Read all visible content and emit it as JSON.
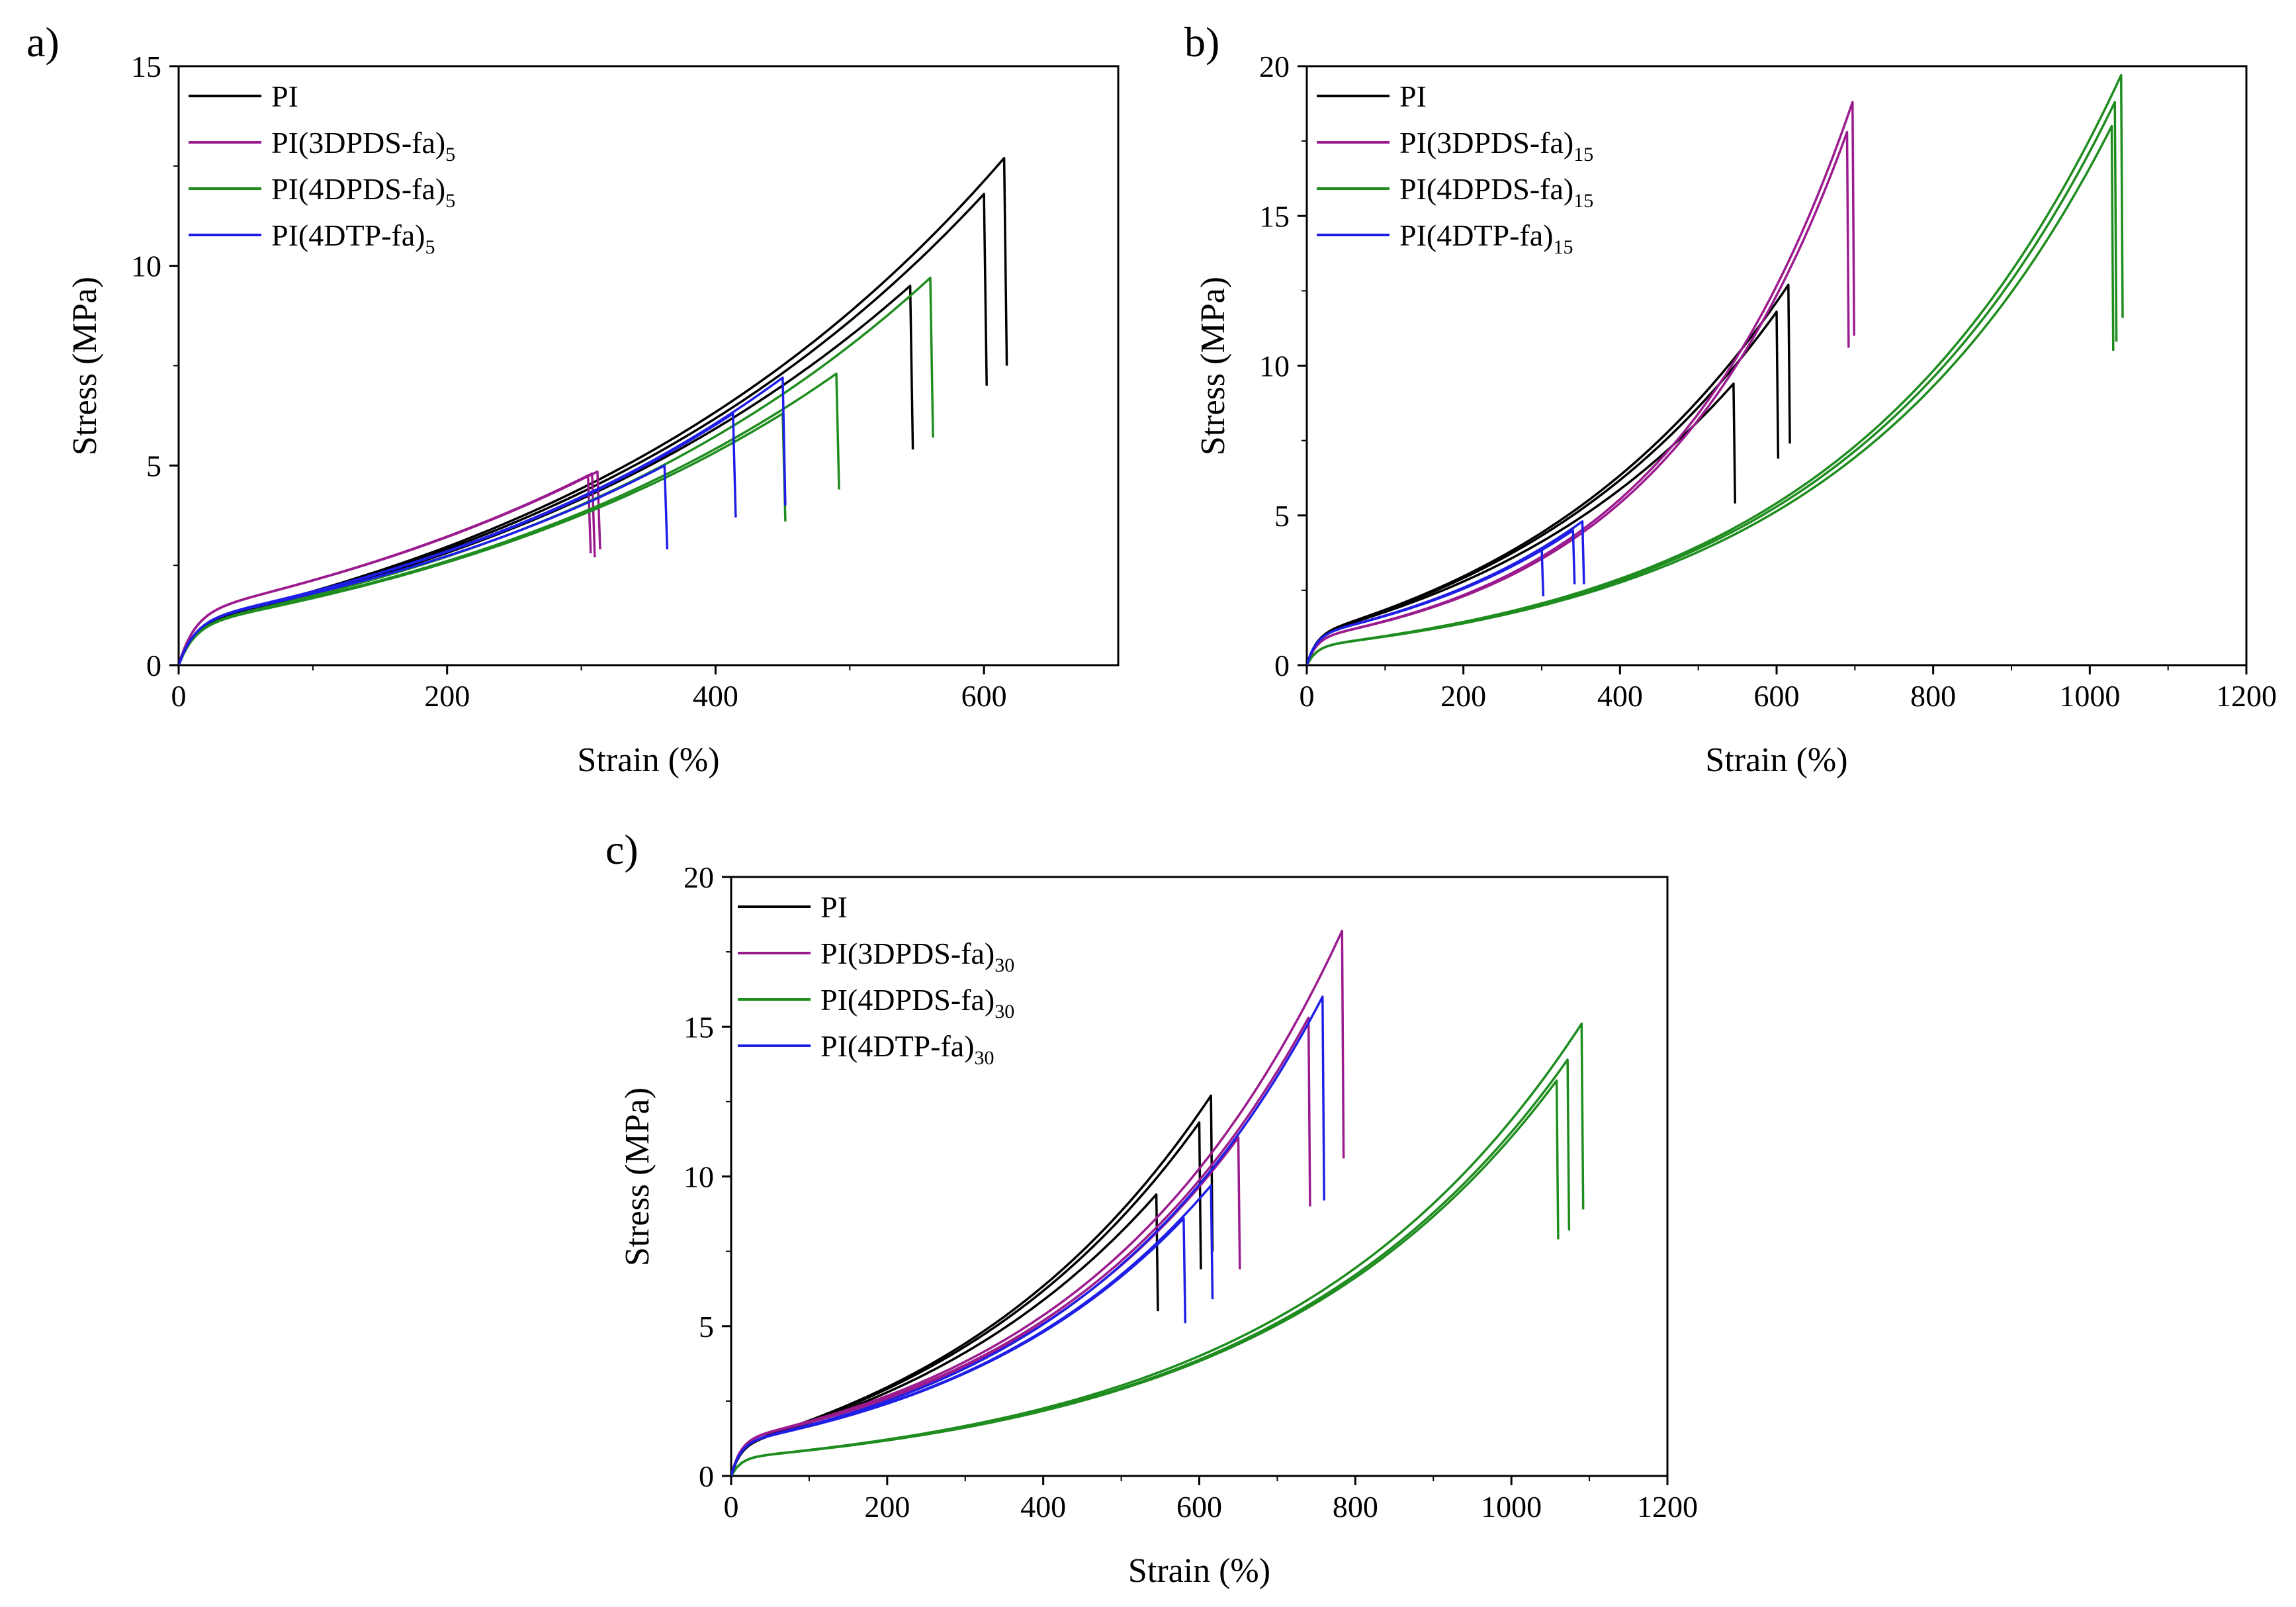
{
  "figure_title": "",
  "colors": {
    "PI": "#000000",
    "3DPDS": "#9b1b8e",
    "4DPDS": "#1e8c1e",
    "4DTP": "#1e1ee6"
  },
  "chart_data": [
    {
      "panel": "a)",
      "type": "line",
      "xlabel": "Strain (%)",
      "ylabel": "Stress (MPa)",
      "xlim": [
        0,
        700
      ],
      "ylim": [
        0,
        15
      ],
      "xticks": [
        "0",
        "200",
        "400",
        "600"
      ],
      "yticks": [
        "0",
        "5",
        "10",
        "15"
      ],
      "legend_position": "top-left",
      "legend": [
        {
          "base": "PI",
          "sub": "",
          "color_key": "PI"
        },
        {
          "base": "PI(3DPDS-fa)",
          "sub": "5",
          "color_key": "3DPDS"
        },
        {
          "base": "PI(4DPDS-fa)",
          "sub": "5",
          "color_key": "4DPDS"
        },
        {
          "base": "PI(4DTP-fa)",
          "sub": "5",
          "color_key": "4DTP"
        }
      ],
      "series": [
        {
          "name": "PI",
          "color_key": "PI",
          "k": 0.0027,
          "a": 1.0,
          "b": 15,
          "breaks": [
            [
              545,
              9.5,
              5.4
            ],
            [
              600,
              11.8,
              7.0
            ],
            [
              615,
              12.7,
              7.5
            ]
          ]
        },
        {
          "name": "PI(3DPDS-fa)5",
          "color_key": "3DPDS",
          "k": 0.0028,
          "a": 1.3,
          "b": 15,
          "breaks": [
            [
              305,
              4.75,
              2.8
            ],
            [
              308,
              4.8,
              2.7
            ],
            [
              312,
              4.85,
              2.9
            ]
          ]
        },
        {
          "name": "PI(4DPDS-fa)5",
          "color_key": "4DPDS",
          "k": 0.0028,
          "a": 1.0,
          "b": 15,
          "breaks": [
            [
              450,
              6.3,
              3.6
            ],
            [
              490,
              7.3,
              4.4
            ],
            [
              560,
              9.7,
              5.7
            ]
          ]
        },
        {
          "name": "PI(4DTP-fa)5",
          "color_key": "4DTP",
          "k": 0.003,
          "a": 1.1,
          "b": 15,
          "breaks": [
            [
              362,
              5.0,
              2.9
            ],
            [
              413,
              6.3,
              3.7
            ],
            [
              450,
              7.2,
              4.0
            ]
          ]
        }
      ]
    },
    {
      "panel": "b)",
      "type": "line",
      "xlabel": "Strain (%)",
      "ylabel": "Stress (MPa)",
      "xlim": [
        0,
        1200
      ],
      "ylim": [
        0,
        20
      ],
      "xticks": [
        "0",
        "200",
        "400",
        "600",
        "800",
        "1000",
        "1200"
      ],
      "yticks": [
        "0",
        "5",
        "10",
        "15",
        "20"
      ],
      "legend_position": "top-left",
      "legend": [
        {
          "base": "PI",
          "sub": "",
          "color_key": "PI"
        },
        {
          "base": "PI(3DPDS-fa)",
          "sub": "15",
          "color_key": "3DPDS"
        },
        {
          "base": "PI(4DPDS-fa)",
          "sub": "15",
          "color_key": "4DPDS"
        },
        {
          "base": "PI(4DTP-fa)",
          "sub": "15",
          "color_key": "4DTP"
        }
      ],
      "series": [
        {
          "name": "PI",
          "color_key": "PI",
          "k": 0.0027,
          "a": 1.0,
          "b": 15,
          "breaks": [
            [
              545,
              9.4,
              5.4
            ],
            [
              600,
              11.8,
              6.9
            ],
            [
              615,
              12.7,
              7.4
            ]
          ]
        },
        {
          "name": "PI(3DPDS-fa)15",
          "color_key": "3DPDS",
          "k": 0.004,
          "a": 0.9,
          "b": 15,
          "breaks": [
            [
              690,
              17.8,
              10.6
            ],
            [
              697,
              18.8,
              11.0
            ]
          ]
        },
        {
          "name": "PI(4DPDS-fa)15",
          "color_key": "4DPDS",
          "k": 0.0028,
          "a": 0.62,
          "b": 15,
          "breaks": [
            [
              1028,
              18.0,
              10.5
            ],
            [
              1032,
              18.8,
              10.8
            ],
            [
              1040,
              19.7,
              11.6
            ]
          ]
        },
        {
          "name": "PI(4DTP-fa)15",
          "color_key": "4DTP",
          "k": 0.0035,
          "a": 1.0,
          "b": 15,
          "breaks": [
            [
              300,
              3.9,
              2.3
            ],
            [
              340,
              4.5,
              2.7
            ],
            [
              352,
              4.8,
              2.7
            ]
          ]
        }
      ]
    },
    {
      "panel": "c)",
      "type": "line",
      "xlabel": "Strain (%)",
      "ylabel": "Stress (MPa)",
      "xlim": [
        0,
        1200
      ],
      "ylim": [
        0,
        20
      ],
      "xticks": [
        "0",
        "200",
        "400",
        "600",
        "800",
        "1000",
        "1200"
      ],
      "yticks": [
        "0",
        "5",
        "10",
        "15",
        "20"
      ],
      "legend_position": "top-left",
      "legend": [
        {
          "base": "PI",
          "sub": "",
          "color_key": "PI"
        },
        {
          "base": "PI(3DPDS-fa)",
          "sub": "30",
          "color_key": "3DPDS"
        },
        {
          "base": "PI(4DPDS-fa)",
          "sub": "30",
          "color_key": "4DPDS"
        },
        {
          "base": "PI(4DTP-fa)",
          "sub": "30",
          "color_key": "4DTP"
        }
      ],
      "series": [
        {
          "name": "PI",
          "color_key": "PI",
          "k": 0.0027,
          "a": 1.0,
          "b": 15,
          "breaks": [
            [
              545,
              9.4,
              5.5
            ],
            [
              600,
              11.8,
              6.9
            ],
            [
              615,
              12.7,
              7.5
            ]
          ]
        },
        {
          "name": "PI(3DPDS-fa)30",
          "color_key": "3DPDS",
          "k": 0.003,
          "a": 1.2,
          "b": 15,
          "breaks": [
            [
              650,
              11.3,
              6.9
            ],
            [
              740,
              15.3,
              9.0
            ],
            [
              783,
              18.2,
              10.6
            ]
          ]
        },
        {
          "name": "PI(4DPDS-fa)30",
          "color_key": "4DPDS",
          "k": 0.0026,
          "a": 0.6,
          "b": 15,
          "breaks": [
            [
              1058,
              13.2,
              7.9
            ],
            [
              1072,
              13.9,
              8.2
            ],
            [
              1090,
              15.1,
              8.9
            ]
          ]
        },
        {
          "name": "PI(4DTP-fa)30",
          "color_key": "4DTP",
          "k": 0.003,
          "a": 1.1,
          "b": 15,
          "breaks": [
            [
              580,
              8.6,
              5.1
            ],
            [
              615,
              9.7,
              5.9
            ],
            [
              758,
              16.0,
              9.2
            ]
          ]
        }
      ]
    }
  ]
}
